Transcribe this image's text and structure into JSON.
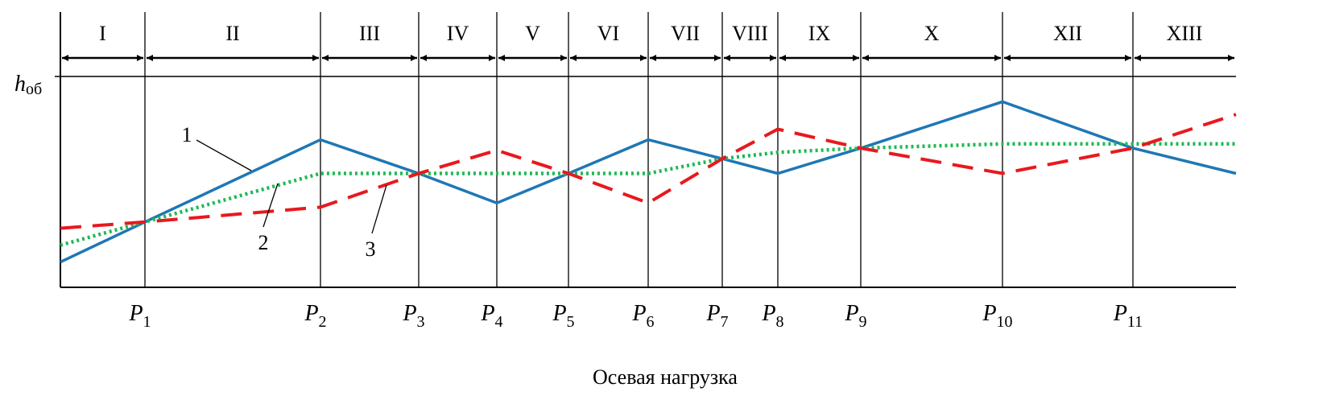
{
  "chart_data": {
    "type": "line",
    "ylabel": "h",
    "ylabel_sub": "об",
    "xlabel": "Осевая нагрузка",
    "x_ticks": [
      {
        "base": "P",
        "sub": "1",
        "x": 1
      },
      {
        "base": "P",
        "sub": "2",
        "x": 2
      },
      {
        "base": "P",
        "sub": "3",
        "x": 3
      },
      {
        "base": "P",
        "sub": "4",
        "x": 4
      },
      {
        "base": "P",
        "sub": "5",
        "x": 5
      },
      {
        "base": "P",
        "sub": "6",
        "x": 6
      },
      {
        "base": "P",
        "sub": "7",
        "x": 7
      },
      {
        "base": "P",
        "sub": "8",
        "x": 8
      },
      {
        "base": "P",
        "sub": "9",
        "x": 9
      },
      {
        "base": "P",
        "sub": "10",
        "x": 10
      },
      {
        "base": "P",
        "sub": "11",
        "x": 11
      }
    ],
    "zones": [
      "I",
      "II",
      "III",
      "IV",
      "V",
      "VI",
      "VII",
      "VIII",
      "IX",
      "X",
      "XII",
      "XIII"
    ],
    "y_max_mark": 1.0,
    "ylim": [
      0,
      1
    ],
    "xlim": [
      0.5,
      11.75
    ],
    "grid": false,
    "series": [
      {
        "name": "1",
        "color": "#1f77b4",
        "dash": "solid",
        "x": [
          0.5,
          1,
          2,
          3,
          4,
          5,
          6,
          7,
          8,
          9,
          10,
          11,
          11.75
        ],
        "y": [
          0.12,
          0.31,
          0.7,
          0.54,
          0.4,
          0.54,
          0.7,
          0.61,
          0.54,
          0.66,
          0.88,
          0.66,
          0.54
        ]
      },
      {
        "name": "2",
        "color": "#1db954",
        "dash": "dotted",
        "x": [
          0.5,
          1,
          2,
          3,
          4,
          5,
          6,
          7,
          8,
          9,
          10,
          11,
          11.75
        ],
        "y": [
          0.2,
          0.31,
          0.54,
          0.54,
          0.54,
          0.54,
          0.54,
          0.61,
          0.64,
          0.66,
          0.68,
          0.68,
          0.68
        ]
      },
      {
        "name": "3",
        "color": "#e8191e",
        "dash": "dashed",
        "x": [
          0.5,
          1,
          2,
          3,
          4,
          5,
          6,
          7,
          8,
          9,
          10,
          11,
          11.75
        ],
        "y": [
          0.28,
          0.31,
          0.38,
          0.54,
          0.65,
          0.54,
          0.4,
          0.61,
          0.75,
          0.66,
          0.54,
          0.66,
          0.82
        ]
      }
    ],
    "series_labels": [
      "1",
      "2",
      "3"
    ]
  }
}
